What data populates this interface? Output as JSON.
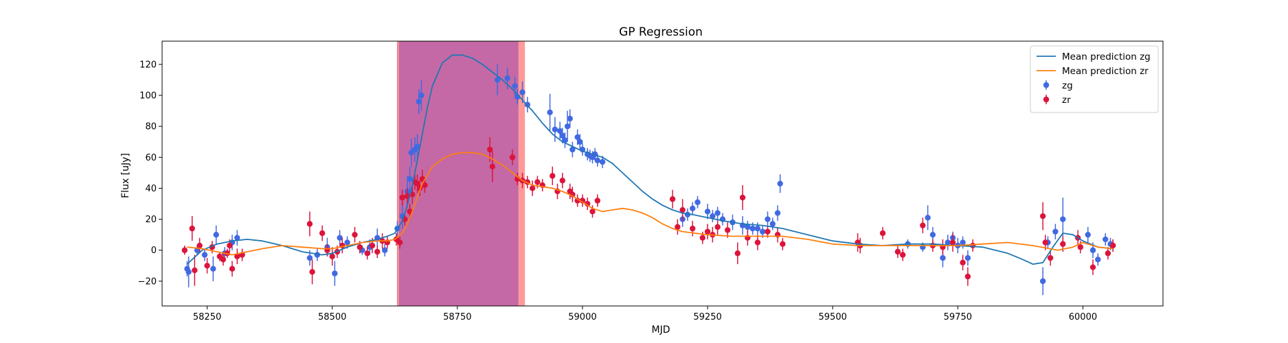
{
  "chart_data": {
    "type": "scatter",
    "title": "GP Regression",
    "xlabel": "MJD",
    "ylabel": "Flux [uJy]",
    "xlim": [
      58160,
      60160
    ],
    "ylim": [
      -36,
      135
    ],
    "xticks": [
      58250,
      58500,
      58750,
      59000,
      59250,
      59500,
      59750,
      60000
    ],
    "yticks": [
      -20,
      0,
      20,
      40,
      60,
      80,
      100,
      120
    ],
    "legend_position": "top-right",
    "shaded_regions": [
      {
        "x0": 58630,
        "x1": 58885,
        "color": "#ff9a9a"
      },
      {
        "x0": 58633,
        "x1": 58872,
        "color": "#c469a5"
      }
    ],
    "series": [
      {
        "name": "Mean prediction zg",
        "kind": "line",
        "color": "#1f77b4",
        "x": [
          58210,
          58240,
          58270,
          58300,
          58330,
          58360,
          58400,
          58440,
          58480,
          58500,
          58530,
          58560,
          58590,
          58610,
          58625,
          58640,
          58650,
          58660,
          58670,
          58680,
          58690,
          58700,
          58720,
          58740,
          58760,
          58780,
          58800,
          58820,
          58840,
          58860,
          58880,
          58900,
          58920,
          58940,
          58960,
          58980,
          59000,
          59020,
          59040,
          59060,
          59080,
          59100,
          59120,
          59140,
          59160,
          59180,
          59200,
          59220,
          59250,
          59280,
          59320,
          59360,
          59400,
          59450,
          59500,
          59550,
          59600,
          59650,
          59700,
          59750,
          59800,
          59850,
          59880,
          59900,
          59920,
          59940,
          59960,
          59980,
          60000,
          60030,
          60060
        ],
        "y": [
          -9,
          0,
          4,
          6,
          7,
          6,
          3,
          -1,
          -3,
          -2,
          2,
          5,
          7,
          9,
          11,
          19,
          29,
          42,
          58,
          75,
          92,
          106,
          121,
          126,
          126,
          124,
          120,
          115,
          110,
          104,
          97,
          90,
          82,
          75,
          70,
          67,
          64,
          62,
          60,
          56,
          50,
          44,
          38,
          33,
          29,
          26,
          24,
          23,
          21,
          19,
          17,
          16,
          14,
          10,
          6,
          4,
          3,
          4,
          4,
          3,
          2,
          -2,
          -6,
          -9,
          -8,
          2,
          11,
          10,
          6,
          2,
          1
        ]
      },
      {
        "name": "Mean prediction zr",
        "kind": "line",
        "color": "#ff7f0e",
        "x": [
          58210,
          58240,
          58270,
          58300,
          58330,
          58360,
          58400,
          58440,
          58480,
          58500,
          58530,
          58560,
          58590,
          58610,
          58625,
          58640,
          58650,
          58660,
          58670,
          58680,
          58700,
          58720,
          58740,
          58760,
          58780,
          58800,
          58820,
          58840,
          58860,
          58880,
          58900,
          58920,
          58940,
          58960,
          58980,
          59000,
          59020,
          59040,
          59060,
          59080,
          59100,
          59120,
          59140,
          59160,
          59180,
          59200,
          59250,
          59300,
          59350,
          59400,
          59450,
          59500,
          59550,
          59600,
          59650,
          59700,
          59750,
          59800,
          59850,
          59900,
          59950,
          59980,
          60000,
          60030,
          60060
        ],
        "y": [
          2,
          1,
          -1,
          -3,
          -1,
          1,
          3,
          2,
          1,
          1,
          3,
          5,
          6,
          6,
          7,
          11,
          17,
          25,
          34,
          43,
          54,
          59,
          62,
          63,
          63,
          62,
          59,
          55,
          50,
          45,
          42,
          41,
          40,
          38,
          35,
          31,
          27,
          25,
          26,
          27,
          26,
          24,
          21,
          17,
          14,
          12,
          10,
          9,
          9,
          9,
          7,
          4,
          3,
          3,
          3,
          3,
          3,
          4,
          5,
          3,
          0,
          2,
          5,
          2,
          1
        ]
      },
      {
        "name": "zg",
        "kind": "errorbar",
        "color": "#4169e1",
        "x": [
          58210,
          58213,
          58230,
          58245,
          58262,
          58268,
          58285,
          58300,
          58310,
          58455,
          58470,
          58490,
          58505,
          58515,
          58530,
          58560,
          58575,
          58590,
          58605,
          58630,
          58640,
          58650,
          58655,
          58658,
          58665,
          58670,
          58673,
          58678,
          58830,
          58850,
          58865,
          58870,
          58880,
          58890,
          58935,
          58945,
          58955,
          58960,
          58965,
          58970,
          58975,
          58980,
          58990,
          58995,
          59000,
          59010,
          59015,
          59020,
          59025,
          59030,
          59040,
          59200,
          59210,
          59220,
          59230,
          59250,
          59260,
          59270,
          59280,
          59300,
          59320,
          59330,
          59340,
          59350,
          59360,
          59370,
          59380,
          59390,
          59395,
          59650,
          59680,
          59690,
          59700,
          59720,
          59730,
          59740,
          59750,
          59760,
          59770,
          59920,
          59930,
          59945,
          59960,
          60010,
          60020,
          60030,
          60045,
          60055,
          60060
        ],
        "y": [
          -12,
          -14,
          0,
          -3,
          -12,
          10,
          -2,
          5,
          8,
          -5,
          -3,
          2,
          -15,
          8,
          5,
          0,
          2,
          8,
          0,
          14,
          22,
          38,
          46,
          63,
          65,
          67,
          96,
          100,
          110,
          111,
          106,
          99,
          102,
          94,
          89,
          78,
          77,
          74,
          71,
          80,
          85,
          65,
          73,
          70,
          65,
          62,
          61,
          60,
          62,
          58,
          57,
          20,
          23,
          27,
          31,
          25,
          22,
          24,
          20,
          18,
          16,
          15,
          14,
          14,
          12,
          20,
          17,
          24,
          43,
          4,
          2,
          21,
          10,
          -5,
          5,
          8,
          3,
          5,
          -5,
          -20,
          5,
          12,
          20,
          10,
          0,
          -6,
          7,
          4,
          3
        ],
        "err": [
          5,
          10,
          3,
          4,
          8,
          6,
          4,
          5,
          5,
          5,
          4,
          6,
          8,
          5,
          4,
          3,
          5,
          6,
          4,
          5,
          8,
          10,
          8,
          9,
          8,
          8,
          8,
          10,
          10,
          7,
          6,
          5,
          7,
          5,
          12,
          8,
          6,
          5,
          5,
          10,
          6,
          5,
          5,
          5,
          4,
          4,
          4,
          4,
          4,
          4,
          4,
          5,
          4,
          4,
          4,
          5,
          4,
          4,
          4,
          5,
          6,
          4,
          4,
          4,
          4,
          5,
          4,
          5,
          6,
          3,
          3,
          8,
          5,
          6,
          5,
          4,
          5,
          4,
          5,
          9,
          4,
          5,
          14,
          5,
          5,
          4,
          4,
          4,
          4
        ]
      },
      {
        "name": "zr",
        "kind": "errorbar",
        "color": "#dc143c",
        "x": [
          58205,
          58220,
          58225,
          58235,
          58250,
          58260,
          58275,
          58282,
          58290,
          58295,
          58300,
          58310,
          58320,
          58455,
          58460,
          58480,
          58490,
          58500,
          58510,
          58520,
          58545,
          58555,
          58570,
          58580,
          58590,
          58600,
          58610,
          58628,
          58635,
          58640,
          58645,
          58650,
          58655,
          58660,
          58665,
          58670,
          58675,
          58680,
          58685,
          58815,
          58820,
          58860,
          58870,
          58880,
          58890,
          58900,
          58910,
          58920,
          58940,
          58950,
          58960,
          58975,
          58980,
          58990,
          59000,
          59010,
          59020,
          59030,
          59180,
          59190,
          59200,
          59220,
          59240,
          59250,
          59260,
          59270,
          59290,
          59310,
          59320,
          59330,
          59350,
          59370,
          59390,
          59400,
          59550,
          59555,
          59600,
          59630,
          59640,
          59680,
          59700,
          59720,
          59740,
          59760,
          59770,
          59780,
          59920,
          59925,
          59935,
          59960,
          59990,
          59995,
          60020,
          60050,
          60060
        ],
        "y": [
          0,
          14,
          -13,
          3,
          -10,
          2,
          -4,
          -6,
          -2,
          3,
          -12,
          -4,
          -3,
          17,
          -14,
          11,
          0,
          -4,
          -1,
          3,
          10,
          2,
          -2,
          3,
          -1,
          6,
          5,
          7,
          5,
          34,
          20,
          35,
          25,
          36,
          44,
          43,
          40,
          46,
          42,
          65,
          54,
          60,
          46,
          45,
          44,
          40,
          44,
          42,
          48,
          38,
          45,
          38,
          36,
          32,
          32,
          30,
          25,
          32,
          33,
          15,
          26,
          14,
          8,
          12,
          10,
          15,
          13,
          -2,
          34,
          8,
          5,
          12,
          10,
          4,
          5,
          3,
          11,
          -1,
          -3,
          16,
          3,
          2,
          5,
          -8,
          -17,
          3,
          22,
          5,
          -5,
          4,
          8,
          2,
          -11,
          -2,
          3
        ],
        "err": [
          3,
          8,
          10,
          5,
          5,
          4,
          3,
          4,
          3,
          4,
          5,
          5,
          4,
          8,
          8,
          5,
          4,
          6,
          4,
          5,
          5,
          4,
          4,
          5,
          4,
          5,
          4,
          4,
          4,
          5,
          4,
          5,
          5,
          6,
          5,
          6,
          5,
          6,
          5,
          8,
          10,
          5,
          4,
          5,
          4,
          5,
          4,
          4,
          6,
          5,
          5,
          5,
          5,
          4,
          4,
          4,
          4,
          4,
          6,
          5,
          7,
          5,
          4,
          5,
          5,
          5,
          5,
          7,
          8,
          5,
          5,
          4,
          5,
          4,
          6,
          5,
          4,
          4,
          4,
          5,
          4,
          5,
          6,
          5,
          6,
          4,
          9,
          5,
          5,
          5,
          5,
          4,
          5,
          4,
          4
        ]
      }
    ]
  }
}
